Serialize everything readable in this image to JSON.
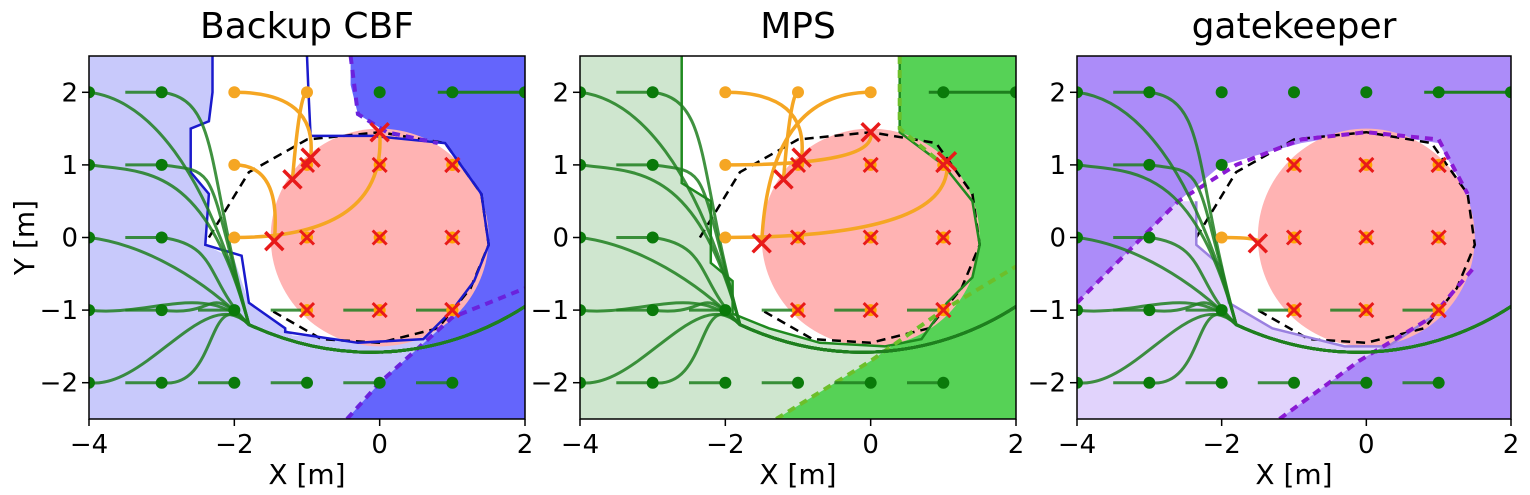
{
  "chart_data": [
    {
      "type": "line",
      "title": "Backup CBF",
      "xlabel": "X [m]",
      "ylabel": "Y [m]",
      "xlim": [
        -4,
        2
      ],
      "ylim": [
        -2.5,
        2.5
      ],
      "xticks": [
        "−4",
        "−2",
        "0",
        "2"
      ],
      "yticks": [
        "2",
        "1",
        "0",
        "−1",
        "−2"
      ],
      "grid": false,
      "colors": {
        "region_light": "#c8c9fb",
        "region_dark": "#6465fc",
        "boundary": "#1a1acc",
        "boundary_dashed": "#6a22dd"
      },
      "failed_starts": [
        [
          -2,
          2
        ],
        [
          -1,
          2
        ],
        [
          -2,
          1
        ],
        [
          -2,
          0
        ]
      ],
      "collision_points": [
        [
          -0.95,
          1.1
        ],
        [
          -1.2,
          0.8
        ],
        [
          -1.45,
          -0.05
        ],
        [
          0,
          1.45
        ]
      ]
    },
    {
      "type": "line",
      "title": "MPS",
      "xlabel": "X [m]",
      "ylabel": "",
      "xlim": [
        -4,
        2
      ],
      "ylim": [
        -2.5,
        2.5
      ],
      "xticks": [
        "−4",
        "−2",
        "0",
        "2"
      ],
      "yticks": [
        "2",
        "1",
        "0",
        "−1",
        "−2"
      ],
      "grid": false,
      "colors": {
        "region_light": "#cfe6cf",
        "region_dark": "#56d256",
        "boundary": "#1f8a1f",
        "boundary_dashed": "#6cbf2a"
      },
      "failed_starts": [
        [
          -2,
          2
        ],
        [
          -1,
          2
        ],
        [
          0,
          2
        ],
        [
          -2,
          1
        ],
        [
          -2,
          0
        ]
      ],
      "collision_points": [
        [
          -0.95,
          1.1
        ],
        [
          -1.2,
          0.8
        ],
        [
          -1.5,
          -0.08
        ],
        [
          0,
          1.45
        ],
        [
          1.05,
          1.05
        ]
      ]
    },
    {
      "type": "line",
      "title": "gatekeeper",
      "xlabel": "X [m]",
      "ylabel": "",
      "xlim": [
        -4,
        2
      ],
      "ylim": [
        -2.5,
        2.5
      ],
      "xticks": [
        "−4",
        "−2",
        "0",
        "2"
      ],
      "yticks": [
        "2",
        "1",
        "0",
        "−1",
        "−2"
      ],
      "grid": false,
      "colors": {
        "region_light": "#e1d3fc",
        "region_dark": "#ac8cf9",
        "boundary": "#9a80e0",
        "boundary_dashed": "#8a1ad4"
      },
      "failed_starts": [
        [
          -2,
          0
        ]
      ],
      "collision_points": [
        [
          -1.5,
          -0.08
        ]
      ]
    }
  ],
  "shared": {
    "obstacle_center": [
      0,
      0
    ],
    "obstacle_radius": 1.5,
    "obstacle_color": "#ffb3b3",
    "start_grid_x": [
      -4,
      -3,
      -2,
      -1,
      0,
      1
    ],
    "start_grid_y": [
      2,
      1,
      0,
      -1,
      -2
    ],
    "trajectory_color": "#1e7f1e",
    "start_color": "#0a7a0a",
    "failed_color": "#f5a623",
    "inside_start_color": "#ffa500",
    "cross_color": "#e81a1a"
  }
}
